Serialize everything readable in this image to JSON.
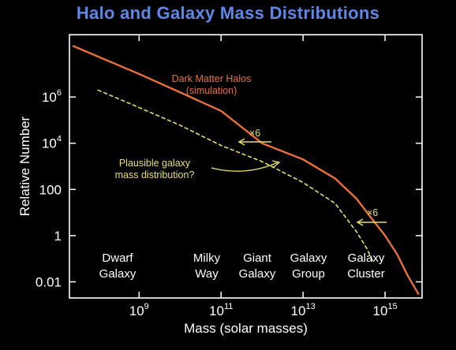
{
  "chart_data": {
    "type": "line",
    "title": "Halo and Galaxy Mass Distributions",
    "xlabel": "Mass (solar masses)",
    "ylabel": "Relative Number",
    "x_scale": "log",
    "y_scale": "log",
    "xlim": [
      20000000.0,
      8000000000000000.0
    ],
    "ylim": [
      0.002,
      500000000.0
    ],
    "x_ticks": [
      {
        "value": 1000000000.0,
        "base": "10",
        "exp": "9"
      },
      {
        "value": 100000000000.0,
        "base": "10",
        "exp": "11"
      },
      {
        "value": 10000000000000.0,
        "base": "10",
        "exp": "13"
      },
      {
        "value": 1000000000000000.0,
        "base": "10",
        "exp": "15"
      }
    ],
    "y_ticks": [
      {
        "value": 1000000.0,
        "base": "10",
        "exp": "6"
      },
      {
        "value": 10000.0,
        "base": "10",
        "exp": "4"
      },
      {
        "value": 100,
        "base": "100",
        "exp": ""
      },
      {
        "value": 1,
        "base": "1",
        "exp": ""
      },
      {
        "value": 0.01,
        "base": "0.01",
        "exp": ""
      }
    ],
    "series": [
      {
        "name": "Dark Matter Halos (simulation)",
        "style": "solid",
        "color": "#e8703a",
        "x": [
          25000000.0,
          1000000000.0,
          10000000000.0,
          100000000000.0,
          1000000000000.0,
          10000000000000.0,
          60000000000000.0,
          200000000000000.0,
          400000000000000.0,
          1000000000000000.0,
          2000000000000000.0,
          3500000000000000.0,
          6500000000000000.0
        ],
        "y": [
          160000000.0,
          10000000.0,
          1600000.0,
          250000.0,
          10000.0,
          2000,
          300,
          40,
          8,
          1,
          0.15,
          0.02,
          0.003
        ]
      },
      {
        "name": "Plausible galaxy mass distribution?",
        "style": "dashed",
        "color": "#e6e06a",
        "x": [
          100000000.0,
          1000000000.0,
          10000000000.0,
          100000000000.0,
          1000000000000.0,
          10000000000000.0,
          60000000000000.0,
          200000000000000.0,
          350000000000000.0,
          500000000000000.0
        ],
        "y": [
          2000000.0,
          350000.0,
          60000.0,
          8000,
          1600,
          200,
          25,
          1.5,
          0.3,
          0.08
        ]
      }
    ],
    "annotations": [
      {
        "text": [
          "Dark Matter Halos",
          "(simulation)"
        ],
        "color": "#e8703a"
      },
      {
        "text": [
          "Plausible galaxy",
          "mass distribution?"
        ],
        "color": "#e6e06a"
      },
      {
        "text": [
          "×6"
        ],
        "color": "#e6e06a"
      },
      {
        "text": [
          "×6"
        ],
        "color": "#e6e06a"
      }
    ],
    "categories": [
      {
        "lines": [
          "Dwarf",
          "Galaxy"
        ]
      },
      {
        "lines": [
          "Milky",
          "Way"
        ]
      },
      {
        "lines": [
          "Giant",
          "Galaxy"
        ]
      },
      {
        "lines": [
          "Galaxy",
          "Group"
        ]
      },
      {
        "lines": [
          "Galaxy",
          "Cluster"
        ]
      }
    ],
    "colors": {
      "background": "#000000",
      "title": "#5f87e8",
      "axes": "#ffffff"
    }
  }
}
